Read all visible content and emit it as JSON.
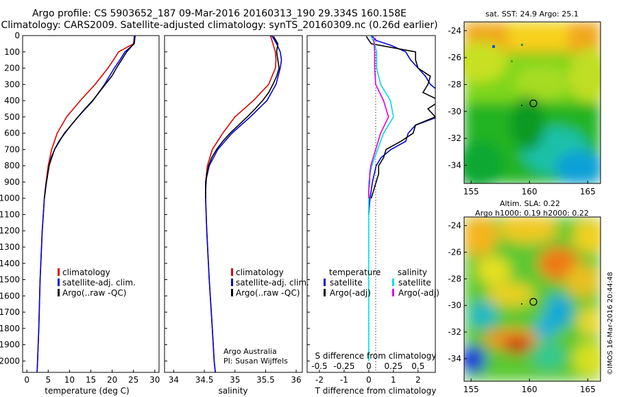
{
  "header": {
    "line1": "Argo profile: CS 5903652_187 09-Mar-2016 20160313_190 29.334S 160.158E",
    "line2": "Climatology: CARS2009. Satellite-adjusted climatology: synTS_20160309.nc (0.26d earlier)"
  },
  "credits": {
    "program": "Argo Australia",
    "pi": "PI: Susan Wijffels",
    "imos": "©IMOS 16-Mar-2016 20:44:48"
  },
  "colors": {
    "climatology": "#dd0000",
    "satellite": "#0000dd",
    "argo": "#000000",
    "sal_satellite": "#00dddd",
    "sal_argo": "#dd00dd"
  },
  "chart_data": [
    {
      "type": "line",
      "id": "temperature",
      "xlabel": "temperature (deg C)",
      "xlim": [
        -1,
        31
      ],
      "xticks": [
        0,
        5,
        10,
        15,
        20,
        25,
        30
      ],
      "ylim": [
        2070,
        0
      ],
      "yticks": [
        0,
        100,
        200,
        300,
        400,
        500,
        600,
        700,
        800,
        900,
        1000,
        1100,
        1200,
        1300,
        1400,
        1500,
        1600,
        1700,
        1800,
        1900,
        2000
      ],
      "legend": [
        "climatology",
        "satellite-adj. clim.",
        "Argo(..raw -QC)"
      ],
      "series": [
        {
          "name": "climatology",
          "color": "#dd0000",
          "depth": [
            0,
            50,
            100,
            150,
            200,
            300,
            400,
            500,
            600,
            700,
            800,
            900,
            1000,
            1200,
            1500,
            1800,
            2000,
            2070
          ],
          "values": [
            25.3,
            25,
            21.5,
            20.3,
            19,
            16,
            12.5,
            9.3,
            7.1,
            5.8,
            5,
            4.5,
            4.1,
            3.6,
            3.1,
            2.8,
            2.5,
            2.4
          ]
        },
        {
          "name": "satellite-adj. clim.",
          "color": "#0000dd",
          "depth": [
            0,
            50,
            100,
            150,
            200,
            300,
            400,
            500,
            600,
            700,
            800,
            900,
            1000,
            1200,
            1500,
            1800,
            2000,
            2070
          ],
          "values": [
            25.4,
            25.2,
            23,
            21.8,
            20.5,
            18.2,
            15.5,
            12,
            8.8,
            6.5,
            5.2,
            4.6,
            4.1,
            3.6,
            3.1,
            2.8,
            2.5,
            2.4
          ]
        },
        {
          "name": "Argo(..raw -QC)",
          "color": "#000000",
          "depth": [
            5,
            50,
            100,
            150,
            200,
            250,
            300,
            350,
            400,
            450,
            500,
            550,
            600,
            650,
            700,
            750,
            800,
            850,
            900,
            950,
            1000
          ],
          "values": [
            25.2,
            25.1,
            23.4,
            22.2,
            21,
            19.9,
            18.4,
            16.9,
            15.4,
            13.6,
            12,
            10.4,
            8.9,
            7.5,
            6.5,
            5.7,
            5.2,
            4.9,
            4.6,
            4.3,
            4.1
          ]
        }
      ]
    },
    {
      "type": "line",
      "id": "salinity",
      "xlabel": "salinity",
      "xlim": [
        33.85,
        36.1
      ],
      "xticks": [
        34,
        34.5,
        35,
        35.5,
        36
      ],
      "ylim": [
        2070,
        0
      ],
      "legend": [
        "climatology",
        "satellite-adj. clim.",
        "Argo(..raw -QC)"
      ],
      "series": [
        {
          "name": "climatology",
          "color": "#dd0000",
          "depth": [
            0,
            50,
            100,
            150,
            200,
            300,
            400,
            500,
            600,
            700,
            800,
            900,
            1000,
            1200,
            1500,
            1800,
            2000,
            2070
          ],
          "values": [
            35.58,
            35.62,
            35.66,
            35.67,
            35.66,
            35.55,
            35.3,
            35.0,
            34.8,
            34.63,
            34.55,
            34.52,
            34.52,
            34.54,
            34.58,
            34.63,
            34.66,
            34.68
          ]
        },
        {
          "name": "satellite-adj. clim.",
          "color": "#0000dd",
          "depth": [
            0,
            50,
            100,
            150,
            200,
            300,
            400,
            500,
            600,
            700,
            800,
            900,
            1000,
            1200,
            1500,
            1800,
            2000,
            2070
          ],
          "values": [
            35.6,
            35.68,
            35.74,
            35.76,
            35.74,
            35.67,
            35.52,
            35.25,
            34.95,
            34.72,
            34.58,
            34.52,
            34.52,
            34.54,
            34.58,
            34.63,
            34.66,
            34.68
          ]
        },
        {
          "name": "Argo(..raw -QC)",
          "color": "#000000",
          "depth": [
            5,
            50,
            100,
            150,
            200,
            250,
            300,
            350,
            400,
            450,
            500,
            550,
            600,
            650,
            700,
            750,
            800,
            850,
            900,
            950,
            1000
          ],
          "values": [
            35.63,
            35.7,
            35.68,
            35.7,
            35.72,
            35.68,
            35.62,
            35.55,
            35.45,
            35.33,
            35.2,
            35.06,
            34.92,
            34.8,
            34.7,
            34.62,
            34.57,
            34.54,
            34.53,
            34.52,
            34.52
          ]
        }
      ]
    },
    {
      "type": "line",
      "id": "difference",
      "xlabel": "T difference from climatology",
      "xlabel2": "S difference from climatology",
      "xlim": [
        -2.5,
        2.7
      ],
      "xticks": [
        -2,
        -1,
        0,
        1,
        2
      ],
      "sticks": [
        "-0.5",
        "-0.25",
        "0",
        "0.25",
        "0.5"
      ],
      "ylim": [
        2070,
        0
      ],
      "legend_temperature_title": "temperature",
      "legend_salinity_title": "salinity",
      "legend": [
        "satellite",
        "Argo(-adj)",
        "satellite",
        "Argo(-adj)"
      ],
      "series": [
        {
          "name": "satellite",
          "group": "temperature",
          "color": "#0000dd",
          "depth": [
            0,
            30,
            60,
            100,
            150,
            200,
            250,
            300,
            350,
            400,
            450,
            500,
            550,
            600,
            650,
            700,
            750,
            800,
            900,
            1000,
            1100
          ],
          "values": [
            0.1,
            0.3,
            0.9,
            1.5,
            1.7,
            2.0,
            2.3,
            2.5,
            2.9,
            3.0,
            3.2,
            2.8,
            1.9,
            1.6,
            1.5,
            0.9,
            0.5,
            0.3,
            0.15,
            0.05,
            0
          ]
        },
        {
          "name": "Argo(-adj)",
          "group": "temperature",
          "color": "#000000",
          "depth": [
            5,
            50,
            100,
            150,
            200,
            250,
            300,
            350,
            400,
            450,
            500,
            550,
            600,
            650,
            700,
            750,
            800,
            850,
            900,
            950,
            1000
          ],
          "values": [
            -0.1,
            0.1,
            1.9,
            1.9,
            2.0,
            2.5,
            2.4,
            2.2,
            2.9,
            2.4,
            2.7,
            1.9,
            1.8,
            1.3,
            0.7,
            0.6,
            0.4,
            0.4,
            0.3,
            0.2,
            0.1
          ]
        },
        {
          "name": "satellite",
          "group": "salinity",
          "color": "#00dddd",
          "depth": [
            0,
            50,
            100,
            200,
            300,
            400,
            500,
            600,
            700,
            800,
            900,
            1000,
            1200,
            1500,
            1800,
            2000
          ],
          "values": [
            0.02,
            0.06,
            0.08,
            0.08,
            0.12,
            0.22,
            0.25,
            0.15,
            0.09,
            0.03,
            0,
            0,
            0,
            0,
            0,
            0
          ]
        },
        {
          "name": "Argo(-adj)",
          "group": "salinity",
          "color": "#dd00dd",
          "depth": [
            5,
            100,
            200,
            300,
            400,
            500,
            600,
            700,
            800,
            850,
            900,
            950,
            1000
          ],
          "values": [
            0.05,
            0.06,
            0.06,
            0.07,
            0.15,
            0.2,
            0.12,
            0.07,
            0.02,
            0.01,
            0.01,
            0,
            0
          ]
        }
      ]
    },
    {
      "type": "heatmap",
      "id": "sst-map",
      "title": "sat. SST: 24.9 Argo: 25.1",
      "xticks": [
        "155",
        "160",
        "165"
      ],
      "yticks": [
        "-24",
        "-26",
        "-28",
        "-30",
        "-32",
        "-34"
      ],
      "argo_position": {
        "lon": 160.158,
        "lat": -29.334
      }
    },
    {
      "type": "heatmap",
      "id": "sla-map",
      "title": "Altim. SLA: 0.22",
      "subtitle": "Argo h1000: 0.19 h2000: 0.22",
      "xticks": [
        "155",
        "160",
        "165"
      ],
      "yticks": [
        "-24",
        "-26",
        "-28",
        "-30",
        "-32",
        "-34"
      ],
      "argo_position": {
        "lon": 160.158,
        "lat": -29.334
      }
    }
  ]
}
